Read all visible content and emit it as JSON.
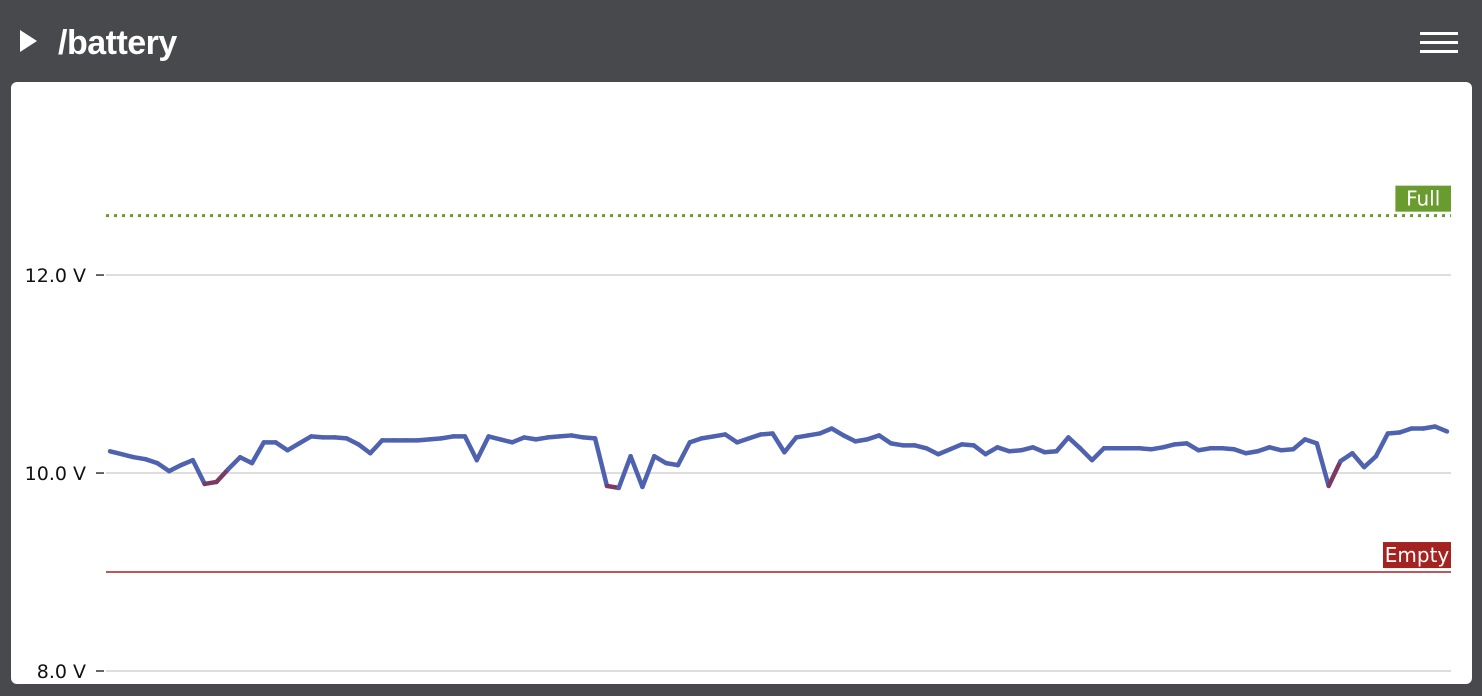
{
  "header": {
    "title": "/battery",
    "play_icon": "play-icon",
    "menu_icon": "hamburger-menu-icon"
  },
  "colors": {
    "header_bg": "#48494c",
    "panel_bg": "#ffffff",
    "line_normal": "#4f62b0",
    "line_low": "#7a3a64",
    "full_color": "#6a9b2e",
    "empty_color": "#a42220",
    "grid": "#d3d3d3"
  },
  "chart_data": {
    "type": "line",
    "title": "",
    "xlabel": "",
    "ylabel": "",
    "ylim": [
      7.95,
      13.95
    ],
    "yticks": [
      8.0,
      10.0,
      12.0
    ],
    "tick_labels": [
      "8.0 V",
      "10.0 V",
      "12.0 V"
    ],
    "grid": true,
    "reference_lines": [
      {
        "name": "full",
        "label": "Full",
        "value": 12.6,
        "style": "dotted",
        "color": "#6a9b2e"
      },
      {
        "name": "empty",
        "label": "Empty",
        "value": 9.0,
        "style": "solid",
        "color": "#a42220"
      }
    ],
    "series": [
      {
        "values": [
          10.22,
          10.19,
          10.16,
          10.14,
          10.1,
          10.02,
          10.08,
          10.13,
          9.89,
          9.91,
          10.04,
          10.16,
          10.1,
          10.31,
          10.31,
          10.23,
          10.3,
          10.37,
          10.36,
          10.36,
          10.35,
          10.29,
          10.2,
          10.33,
          10.33,
          10.33,
          10.33,
          10.34,
          10.35,
          10.37,
          10.37,
          10.13,
          10.37,
          10.34,
          10.31,
          10.36,
          10.34,
          10.36,
          10.37,
          10.38,
          10.36,
          10.35,
          9.87,
          9.85,
          10.17,
          9.86,
          10.17,
          10.1,
          10.08,
          10.31,
          10.35,
          10.37,
          10.39,
          10.31,
          10.35,
          10.39,
          10.4,
          10.21,
          10.36,
          10.38,
          10.4,
          10.45,
          10.38,
          10.32,
          10.34,
          10.38,
          10.3,
          10.28,
          10.28,
          10.25,
          10.19,
          10.24,
          10.29,
          10.28,
          10.19,
          10.26,
          10.22,
          10.23,
          10.26,
          10.21,
          10.22,
          10.36,
          10.25,
          10.13,
          10.25,
          10.25,
          10.25,
          10.25,
          10.24,
          10.26,
          10.29,
          10.3,
          10.23,
          10.25,
          10.25,
          10.24,
          10.2,
          10.22,
          10.26,
          10.23,
          10.24,
          10.34,
          10.3,
          9.87,
          10.12,
          10.2,
          10.06,
          10.17,
          10.4,
          10.41,
          10.45,
          10.45,
          10.47,
          10.42
        ]
      }
    ]
  }
}
